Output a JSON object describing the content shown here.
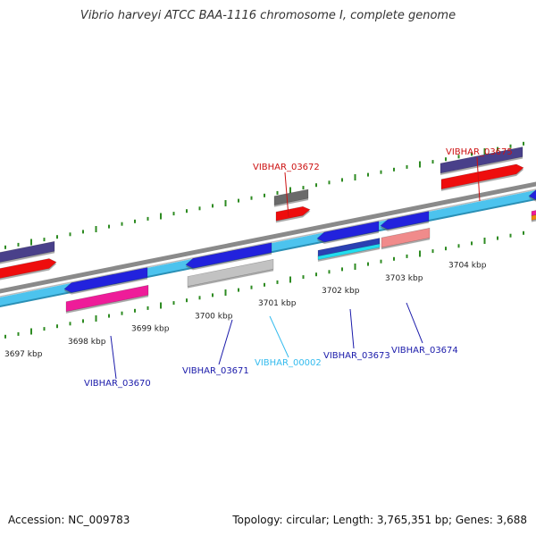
{
  "title": "Vibrio harveyi ATCC BAA-1116 chromosome I, complete genome",
  "footer": {
    "accession": "Accession: NC_009783",
    "topology": "Topology: circular; Length: 3,765,351 bp; Genes: 3,688"
  },
  "colors": {
    "backbone": "#8a8a8a",
    "gene_track": "#4cc3ee",
    "tick": "#2e8b22",
    "cds_forward": "#2323dd",
    "label_blue": "#1a1aaa",
    "label_red": "#cc1111",
    "label_cyan": "#33bbee"
  },
  "ruler": {
    "labels": [
      "3697 kbp",
      "3698 kbp",
      "3699 kbp",
      "3700 kbp",
      "3701 kbp",
      "3702 kbp",
      "3703 kbp",
      "3704 kbp"
    ]
  },
  "genes": [
    {
      "label": "VIBHAR_03670",
      "color": "#1a1aaa"
    },
    {
      "label": "VIBHAR_03671",
      "color": "#1a1aaa"
    },
    {
      "label": "VIBHAR_00002",
      "color": "#33bbee"
    },
    {
      "label": "VIBHAR_03672",
      "color": "#cc1111"
    },
    {
      "label": "VIBHAR_03673",
      "color": "#1a1aaa"
    },
    {
      "label": "VIBHAR_03674",
      "color": "#1a1aaa"
    },
    {
      "label": "VIBHAR_03675",
      "color": "#cc1111"
    }
  ]
}
